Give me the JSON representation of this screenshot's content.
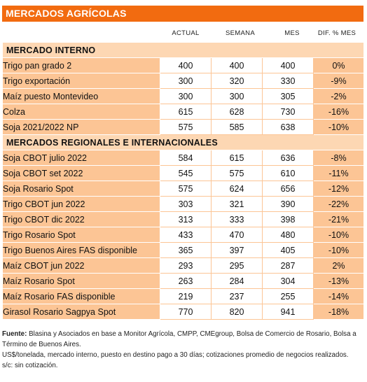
{
  "title": "MERCADOS AGRÍCOLAS",
  "columns": {
    "actual": "ACTUAL",
    "semana": "SEMANA",
    "mes": "MES",
    "dif": "DIF. % MES"
  },
  "sections": [
    {
      "name": "MERCADO INTERNO",
      "rows": [
        {
          "label": "Trigo pan grado 2",
          "actual": "400",
          "semana": "400",
          "mes": "400",
          "dif": "0%"
        },
        {
          "label": "Trigo exportación",
          "actual": "300",
          "semana": "320",
          "mes": "330",
          "dif": "-9%"
        },
        {
          "label": "Maíz puesto Montevideo",
          "actual": "300",
          "semana": "300",
          "mes": "305",
          "dif": "-2%"
        },
        {
          "label": "Colza",
          "actual": "615",
          "semana": "628",
          "mes": "730",
          "dif": "-16%"
        },
        {
          "label": "Soja 2021/2022 NP",
          "actual": "575",
          "semana": "585",
          "mes": "638",
          "dif": "-10%"
        }
      ]
    },
    {
      "name": "MERCADOS REGIONALES E INTERNACIONALES",
      "rows": [
        {
          "label": "Soja CBOT julio 2022",
          "actual": "584",
          "semana": "615",
          "mes": "636",
          "dif": "-8%"
        },
        {
          "label": "Soja CBOT set 2022",
          "actual": "545",
          "semana": "575",
          "mes": "610",
          "dif": "-11%"
        },
        {
          "label": "Soja Rosario Spot",
          "actual": "575",
          "semana": "624",
          "mes": "656",
          "dif": "-12%"
        },
        {
          "label": "Trigo CBOT jun 2022",
          "actual": "303",
          "semana": "321",
          "mes": "390",
          "dif": "-22%"
        },
        {
          "label": "Trigo CBOT dic 2022",
          "actual": "313",
          "semana": "333",
          "mes": "398",
          "dif": "-21%"
        },
        {
          "label": "Trigo Rosario Spot",
          "actual": "433",
          "semana": "470",
          "mes": "480",
          "dif": "-10%"
        },
        {
          "label": "Trigo Buenos Aires FAS disponible",
          "actual": "365",
          "semana": "397",
          "mes": "405",
          "dif": "-10%"
        },
        {
          "label": "Maíz CBOT jun 2022",
          "actual": "293",
          "semana": "295",
          "mes": "287",
          "dif": "2%"
        },
        {
          "label": "Maíz Rosario Spot",
          "actual": "263",
          "semana": "284",
          "mes": "304",
          "dif": "-13%"
        },
        {
          "label": "Maíz Rosario FAS disponible",
          "actual": "219",
          "semana": "237",
          "mes": "255",
          "dif": "-14%"
        },
        {
          "label": "Girasol Rosario Sagpya Spot",
          "actual": "770",
          "semana": "820",
          "mes": "941",
          "dif": "-18%"
        }
      ]
    }
  ],
  "footer": {
    "source_label": "Fuente:",
    "source_text": "Blasina y Asociados en base a Monitor Agrícola, CMPP, CMEgroup, Bolsa de Comercio de Rosario, Bolsa a Término de Buenos Aires.",
    "note": "US$/tonelada, mercado interno, puesto en destino pago a 30 días; cotizaciones promedio de negocios realizados.",
    "abbrev": "s/c: sin cotización."
  }
}
